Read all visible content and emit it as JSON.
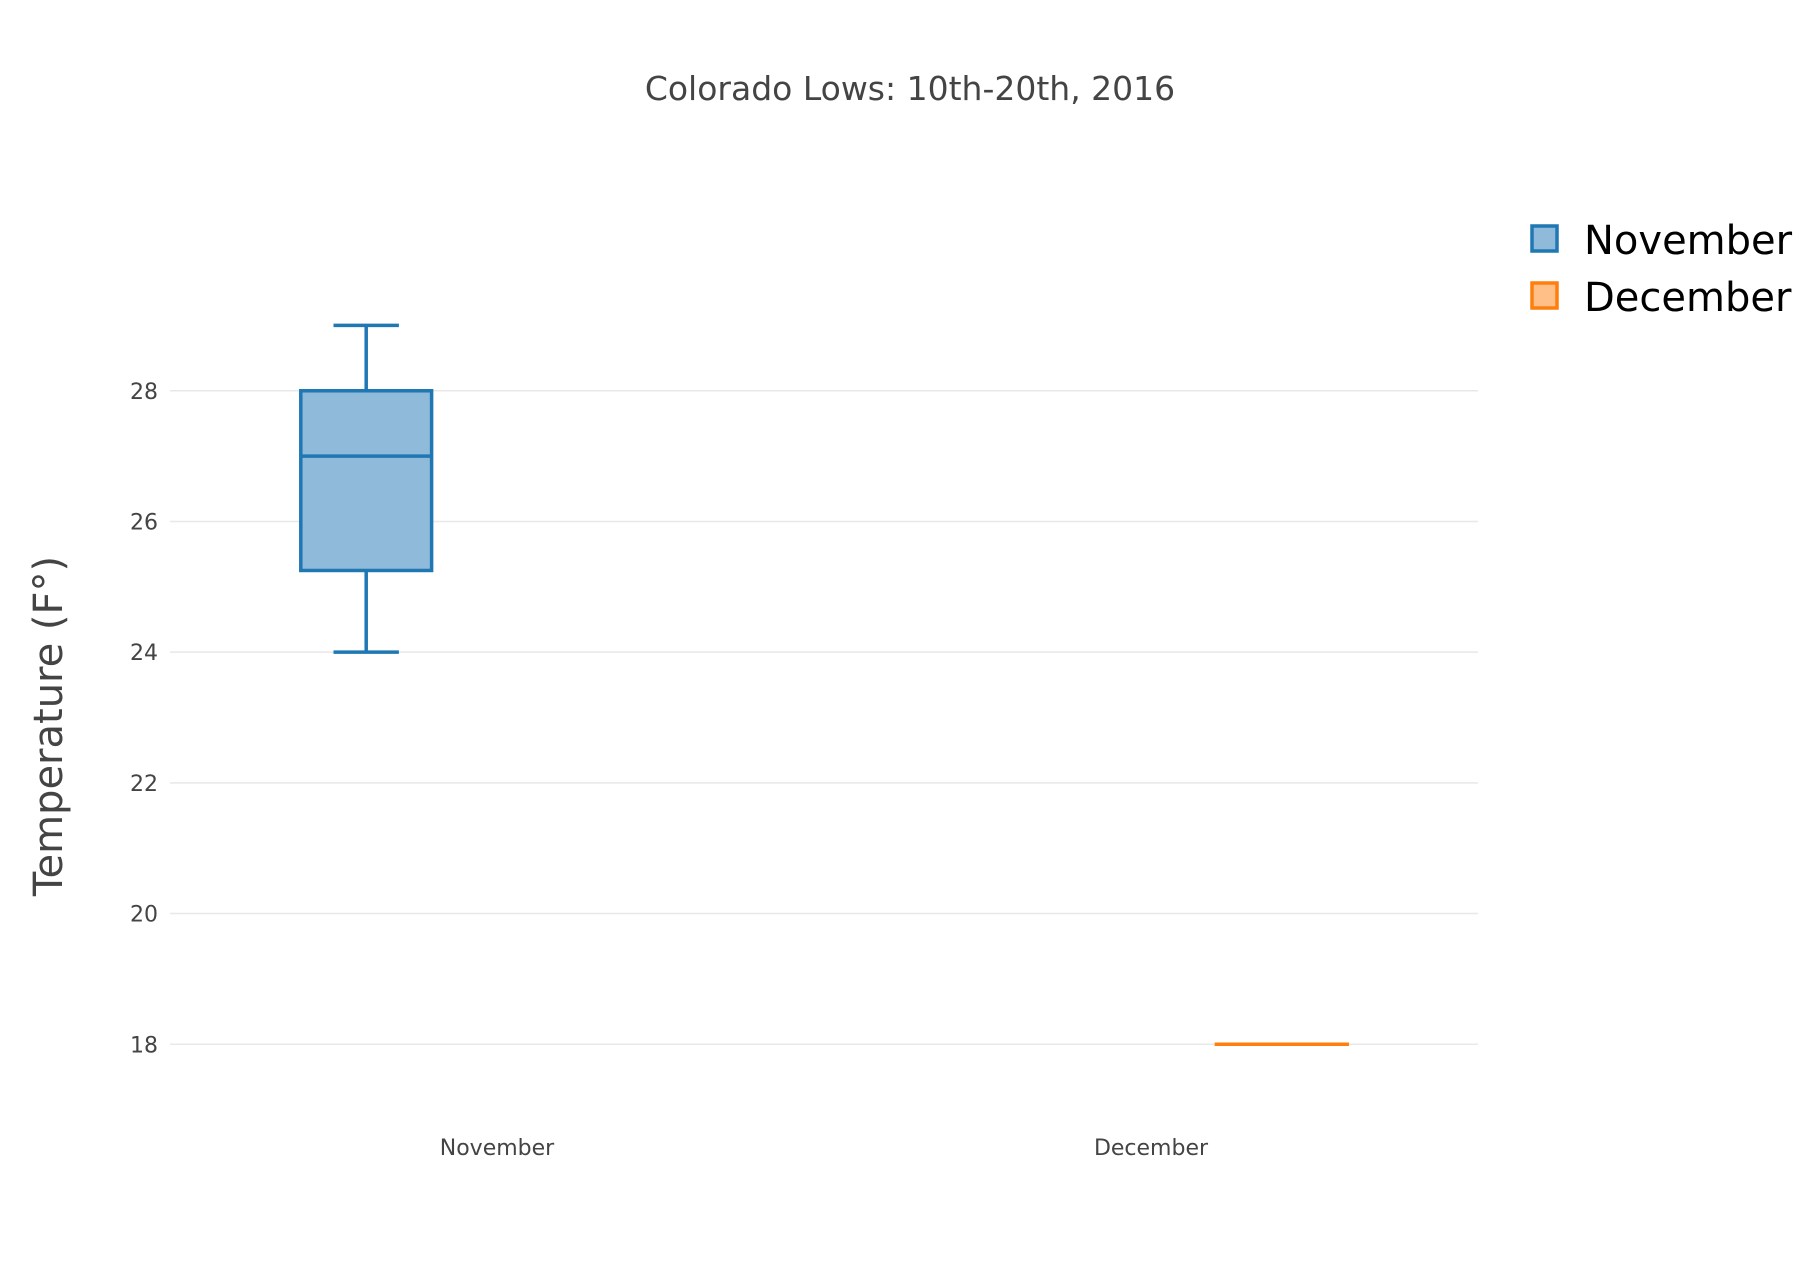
{
  "chart_data": {
    "type": "box",
    "title": "Colorado Lows: 10th-20th, 2016",
    "ylabel": "Temperature (F°)",
    "xlabel": "",
    "ylim": [
      17.3,
      30.2
    ],
    "yticks": [
      18,
      20,
      22,
      24,
      26,
      28
    ],
    "grid": true,
    "legend_position": "top-right",
    "categories": [
      "November",
      "December"
    ],
    "series": [
      {
        "name": "November",
        "category": "November",
        "color": "#1f77b4",
        "fill": "#8fbad9",
        "min": 24,
        "q1": 25.25,
        "median": 27,
        "q3": 28,
        "max": 29
      },
      {
        "name": "December",
        "category": "December",
        "color": "#ff7f0e",
        "fill": "#ffbf87",
        "min": 18,
        "q1": 18,
        "median": 18,
        "q3": 18,
        "max": 18
      }
    ]
  }
}
